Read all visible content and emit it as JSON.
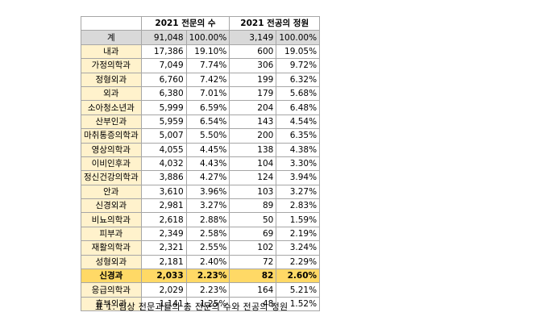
{
  "table": {
    "headers": [
      "",
      "2021 전문의 수",
      "2021 전공의 정원"
    ],
    "rows": [
      [
        "계",
        "91,048",
        "100.00%",
        "3,149",
        "100.00%"
      ],
      [
        "내과",
        "17,386",
        "19.10%",
        "600",
        "19.05%"
      ],
      [
        "가정의학과",
        "7,049",
        "7.74%",
        "306",
        "9.72%"
      ],
      [
        "정형외과",
        "6,760",
        "7.42%",
        "199",
        "6.32%"
      ],
      [
        "외과",
        "6,380",
        "7.01%",
        "179",
        "5.68%"
      ],
      [
        "소아청소년과",
        "5,999",
        "6.59%",
        "204",
        "6.48%"
      ],
      [
        "산부인과",
        "5,959",
        "6.54%",
        "143",
        "4.54%"
      ],
      [
        "마취통증의학과",
        "5,007",
        "5.50%",
        "200",
        "6.35%"
      ],
      [
        "영상의학과",
        "4,055",
        "4.45%",
        "138",
        "4.38%"
      ],
      [
        "이비인후과",
        "4,032",
        "4.43%",
        "104",
        "3.30%"
      ],
      [
        "정신건강의학과",
        "3,886",
        "4.27%",
        "124",
        "3.94%"
      ],
      [
        "안과",
        "3,610",
        "3.96%",
        "103",
        "3.27%"
      ],
      [
        "신경외과",
        "2,981",
        "3.27%",
        "89",
        "2.83%"
      ],
      [
        "비뇨의학과",
        "2,618",
        "2.88%",
        "50",
        "1.59%"
      ],
      [
        "피부과",
        "2,349",
        "2.58%",
        "69",
        "2.19%"
      ],
      [
        "재활의학과",
        "2,321",
        "2.55%",
        "102",
        "3.24%"
      ],
      [
        "성형외과",
        "2,181",
        "2.40%",
        "72",
        "2.29%"
      ],
      [
        "신경과",
        "2,033",
        "2.23%",
        "82",
        "2.60%"
      ],
      [
        "응급의학과",
        "2,029",
        "2.23%",
        "164",
        "5.21%"
      ],
      [
        "흉부외과",
        "1,141",
        "1.25%",
        "48",
        "1.52%"
      ]
    ],
    "highlight_row_label": "신경과"
  },
  "caption": "표 1. 임상 전문과들의 총 전문의 수와 전공의 정원",
  "colors": {
    "name_cell": "#fff2cc",
    "total_row": "#d9d9d9",
    "highlight_row": "#ffd966",
    "border": "#a6a6a6"
  }
}
